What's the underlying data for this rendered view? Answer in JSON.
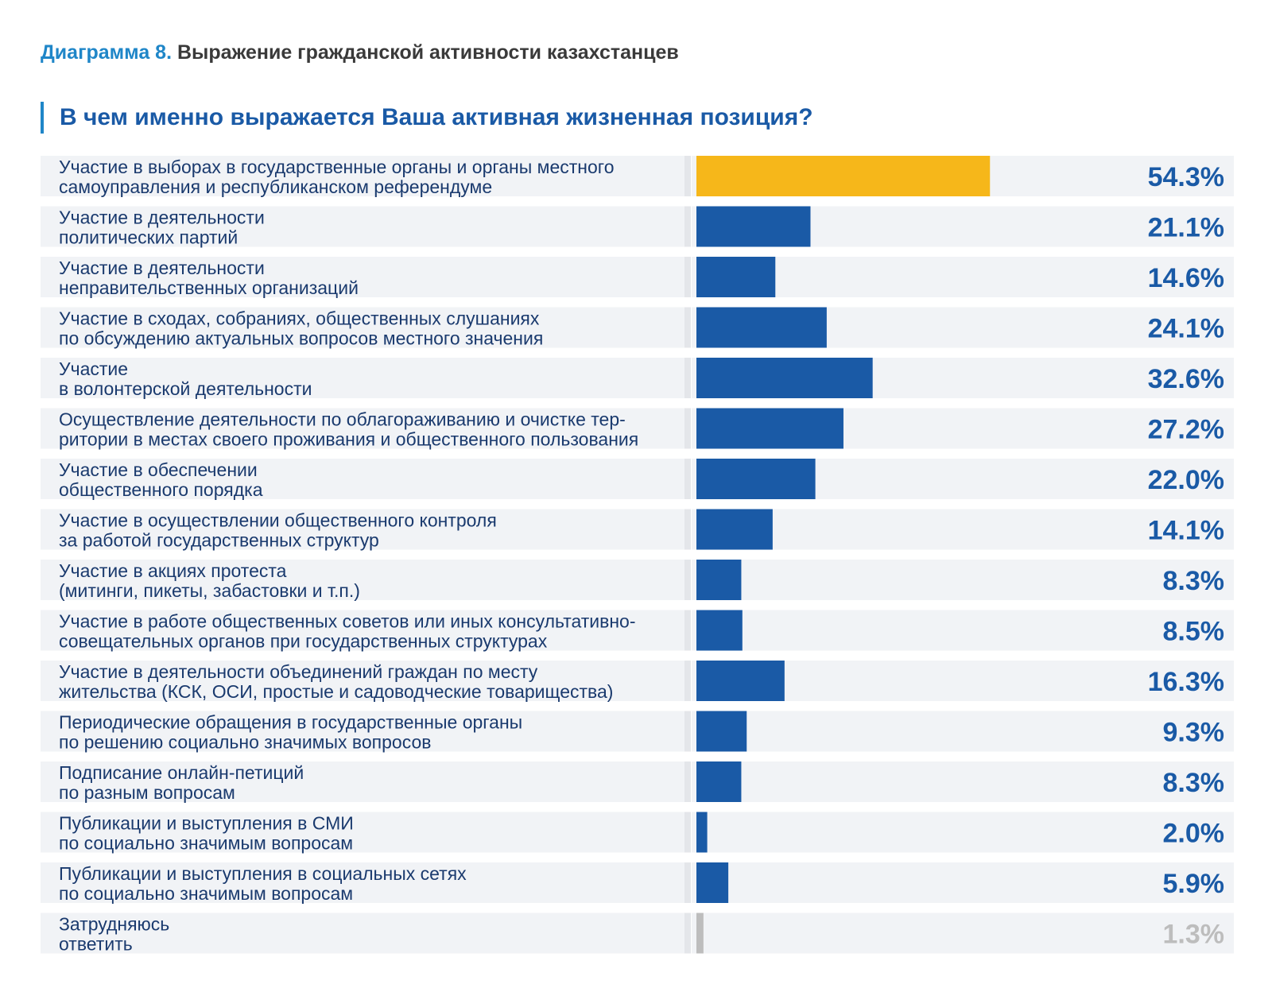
{
  "header": {
    "figure_prefix": "Диаграмма 8.",
    "figure_title": "Выражение гражданской активности казахстанцев",
    "question": "В чем именно выражается Ваша активная жизненная позиция?"
  },
  "colors": {
    "highlight": "#f6b71a",
    "bar": "#1a5aa6",
    "muted": "#bdbdbd",
    "row_bg": "#f1f3f6",
    "accent": "#1f86c8"
  },
  "chart_data": {
    "type": "bar",
    "orientation": "horizontal",
    "unit": "%",
    "xlim": [
      0,
      100
    ],
    "categories": [
      [
        "Участие в выборах в государственные органы и органы местного",
        "самоуправления и республиканском референдуме"
      ],
      [
        "Участие в деятельности",
        "политических партий"
      ],
      [
        "Участие в деятельности",
        "неправительственных организаций"
      ],
      [
        "Участие в сходах, собраниях, общественных слушаниях",
        "по обсуждению актуальных вопросов местного значения"
      ],
      [
        "Участие",
        "в волонтерской деятельности"
      ],
      [
        "Осуществление деятельности по облагораживанию и очистке тер-",
        "ритории в местах своего проживания и общественного пользования"
      ],
      [
        "Участие в обеспечении",
        "общественного порядка"
      ],
      [
        "Участие в осуществлении общественного контроля",
        "за работой государственных структур"
      ],
      [
        "Участие в акциях протеста",
        "(митинги, пикеты, забастовки и т.п.)"
      ],
      [
        "Участие в работе общественных советов или иных консультативно-",
        "совещательных органов при государственных структурах"
      ],
      [
        "Участие в деятельности объединений граждан по месту",
        "жительства (КСК, ОСИ, простые и садоводческие товарищества)"
      ],
      [
        "Периодические обращения в государственные органы",
        "по решению социально значимых вопросов"
      ],
      [
        "Подписание онлайн-петиций",
        "по разным вопросам"
      ],
      [
        "Публикации и выступления в СМИ",
        "по социально значимым вопросам"
      ],
      [
        "Публикации и выступления в социальных сетях",
        "по социально значимым вопросам"
      ],
      [
        "Затрудняюсь",
        "ответить"
      ]
    ],
    "values": [
      54.3,
      21.1,
      14.6,
      24.1,
      32.6,
      27.2,
      22.0,
      14.1,
      8.3,
      8.5,
      16.3,
      9.3,
      8.3,
      2.0,
      5.9,
      1.3
    ],
    "value_labels": [
      "54.3%",
      "21.1%",
      "14.6%",
      "24.1%",
      "32.6%",
      "27.2%",
      "22.0%",
      "14.1%",
      "8.3%",
      "8.5%",
      "16.3%",
      "9.3%",
      "8.3%",
      "2.0%",
      "5.9%",
      "1.3%"
    ],
    "highlight_index": 0,
    "muted_index": 15
  }
}
